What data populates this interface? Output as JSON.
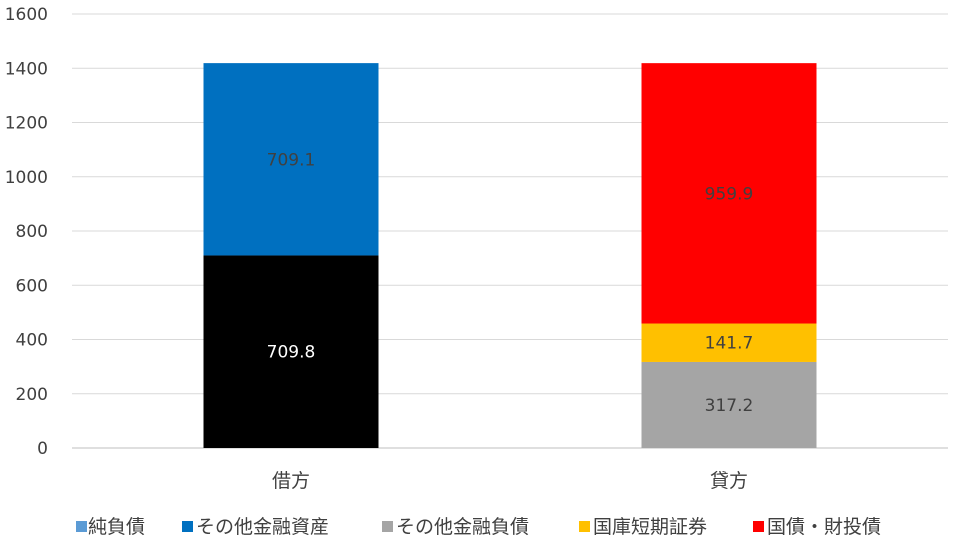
{
  "chart_data": {
    "type": "bar",
    "stacked": true,
    "categories": [
      "借方",
      "貸方"
    ],
    "ylim": [
      0,
      1600
    ],
    "yticks": [
      0,
      200,
      400,
      600,
      800,
      1000,
      1200,
      1400,
      1600
    ],
    "grid": true,
    "legend_position": "bottom",
    "series": [
      {
        "name": "純負債",
        "color": "#5B9BD5",
        "values": [
          709.8,
          0
        ],
        "labels": [
          "709.8",
          ""
        ],
        "label_color": "#ffffff"
      },
      {
        "name": "その他金融資産",
        "color": "#0070C0",
        "values": [
          709.1,
          0
        ],
        "labels": [
          "709.1",
          ""
        ],
        "label_color": "#404040"
      },
      {
        "name": "その他金融負債",
        "color": "#A5A5A5",
        "values": [
          0,
          317.2
        ],
        "labels": [
          "",
          "317.2"
        ],
        "label_color": "#404040"
      },
      {
        "name": "国庫短期証券",
        "color": "#FFC000",
        "values": [
          0,
          141.7
        ],
        "labels": [
          "",
          "141.7"
        ],
        "label_color": "#404040"
      },
      {
        "name": "国債・財投債",
        "color": "#FF0000",
        "values": [
          0,
          959.9
        ],
        "labels": [
          "",
          "959.9"
        ],
        "label_color": "#404040"
      }
    ],
    "segment_colors": {
      "借方": [
        "#000000",
        "#0070C0"
      ]
    }
  }
}
